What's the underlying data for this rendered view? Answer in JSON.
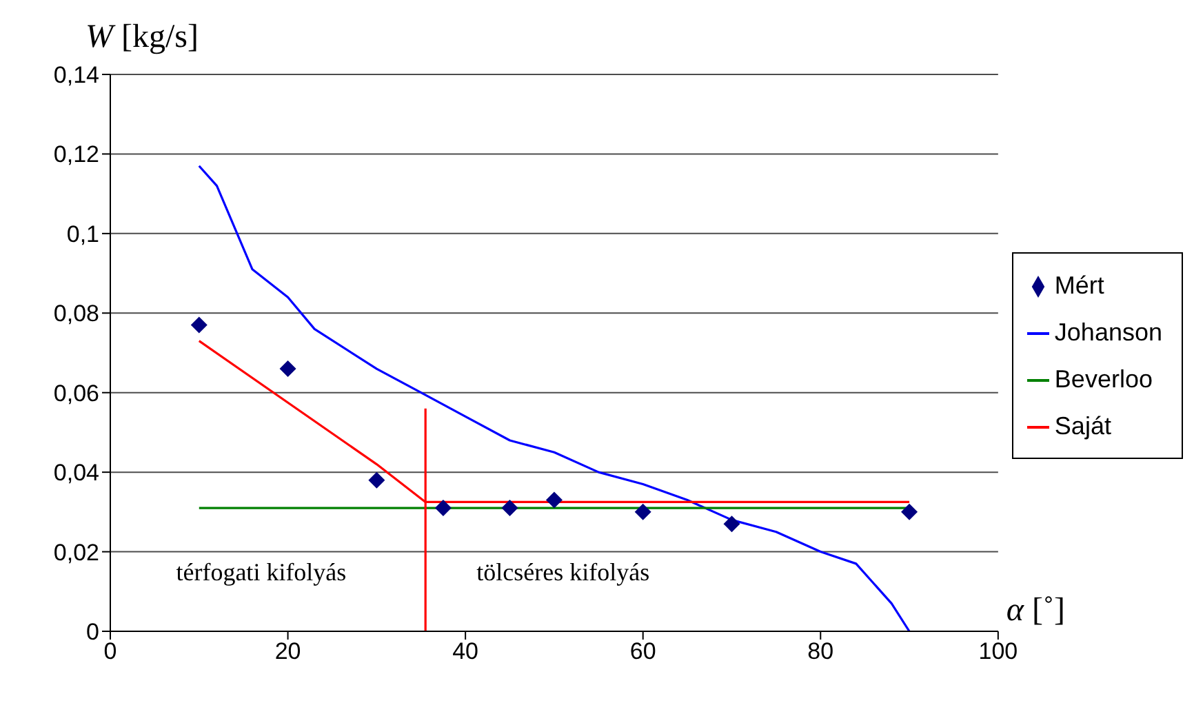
{
  "chart_data": {
    "type": "line",
    "xlabel": "α [˚]",
    "ylabel": "W [kg/s]",
    "xlim": [
      0,
      100
    ],
    "xticks": [
      0,
      20,
      40,
      60,
      80,
      100
    ],
    "ylim": [
      0,
      0.14
    ],
    "yticks": [
      {
        "value": 0,
        "label": "0"
      },
      {
        "value": 0.02,
        "label": "0,02"
      },
      {
        "value": 0.04,
        "label": "0,04"
      },
      {
        "value": 0.06,
        "label": "0,06"
      },
      {
        "value": 0.08,
        "label": "0,08"
      },
      {
        "value": 0.1,
        "label": "0,1"
      },
      {
        "value": 0.12,
        "label": "0,12"
      },
      {
        "value": 0.14,
        "label": "0,14"
      }
    ],
    "grid": "y",
    "legend": "right",
    "series": [
      {
        "name": "Mért",
        "type": "scatter",
        "marker": "diamond",
        "color": "#000080",
        "x": [
          10,
          20,
          30,
          37.5,
          45,
          50,
          60,
          70,
          90
        ],
        "values": [
          0.077,
          0.066,
          0.038,
          0.031,
          0.031,
          0.033,
          0.03,
          0.027,
          0.03
        ]
      },
      {
        "name": "Johanson",
        "color": "#0000ff",
        "x": [
          10,
          12,
          16,
          20,
          23,
          30,
          35,
          40,
          45,
          50,
          55,
          60,
          65,
          70,
          75,
          80,
          84,
          86,
          88,
          90
        ],
        "values": [
          0.117,
          0.112,
          0.091,
          0.084,
          0.076,
          0.066,
          0.06,
          0.054,
          0.048,
          0.045,
          0.04,
          0.037,
          0.033,
          0.028,
          0.025,
          0.02,
          0.017,
          0.012,
          0.007,
          0
        ]
      },
      {
        "name": "Beverloo",
        "color": "#008000",
        "x": [
          10,
          90
        ],
        "values": [
          0.031,
          0.031
        ]
      },
      {
        "name": "Saját",
        "color": "#ff0000",
        "x": [
          10,
          30,
          35.5,
          90
        ],
        "values": [
          0.073,
          0.042,
          0.0325,
          0.0325
        ]
      },
      {
        "color": "#ff0000",
        "x": [
          35.5,
          35.5
        ],
        "values": [
          0,
          0.056
        ]
      }
    ],
    "annotations": [
      "térfogati kifolyás",
      "tölcséres kifolyás"
    ]
  }
}
